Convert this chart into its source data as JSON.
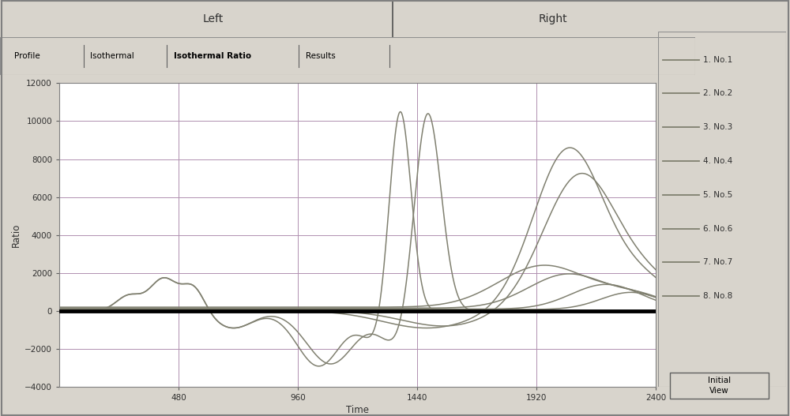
{
  "title_left": "Left",
  "title_right": "Right",
  "tab_labels": [
    "Profile",
    "Isothermal",
    "Isothermal Ratio",
    "Results"
  ],
  "active_tab": "Isothermal Ratio",
  "xlabel": "Time",
  "ylabel": "Ratio",
  "xlim": [
    0,
    2400
  ],
  "ylim": [
    -4000,
    12000
  ],
  "xticks": [
    480,
    960,
    1440,
    1920,
    2400
  ],
  "yticks": [
    -4000,
    -2000,
    0,
    2000,
    4000,
    6000,
    8000,
    10000,
    12000
  ],
  "bg_color": "#d8d4cc",
  "plot_bg_color": "#ffffff",
  "grid_color": "#b090b0",
  "zero_line_color": "#000000",
  "legend_labels": [
    "1. No.1",
    "2. No.2",
    "3. No.3",
    "4. No.4",
    "5. No.5",
    "6. No.6",
    "7. No.7",
    "8. No.8"
  ],
  "line_color": "#808070",
  "initial_view_button": "Initial\nView",
  "vlines": [
    480,
    960,
    1440,
    1920
  ],
  "hlines": [
    -4000,
    -2000,
    0,
    2000,
    4000,
    6000,
    8000,
    10000,
    12000
  ]
}
